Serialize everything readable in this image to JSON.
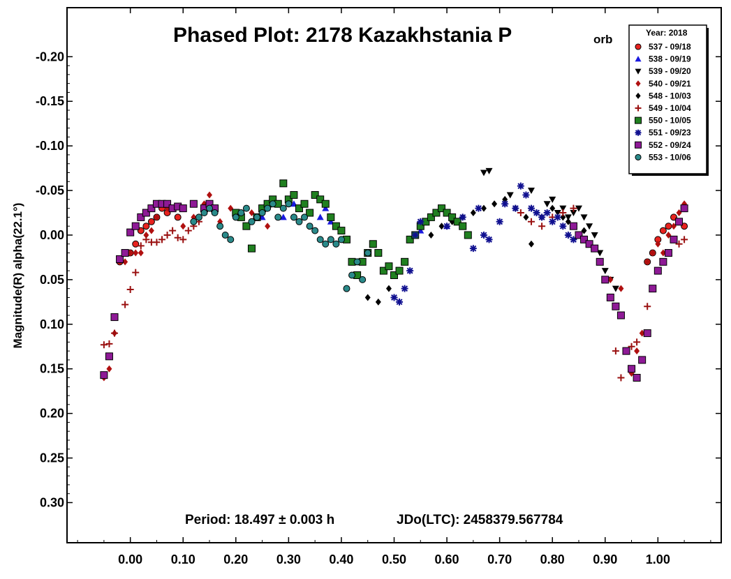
{
  "chart_data": {
    "type": "scatter",
    "title": "Phased Plot: 2178 Kazakhstania P",
    "title_subscript": "orb",
    "xlabel": "",
    "ylabel": "Magnitude(R) alpha(22.1°)",
    "xlim": [
      -0.12,
      1.12
    ],
    "ylim": [
      -0.255,
      0.345
    ],
    "y_inverted": true,
    "grid": false,
    "legend_position": "top-right",
    "legend_title": "Year: 2018",
    "x_ticks": [
      0.0,
      0.1,
      0.2,
      0.3,
      0.4,
      0.5,
      0.6,
      0.7,
      0.8,
      0.9,
      1.0
    ],
    "x_tick_labels": [
      "0.00",
      "0.10",
      "0.20",
      "0.30",
      "0.40",
      "0.50",
      "0.60",
      "0.70",
      "0.80",
      "0.90",
      "1.00"
    ],
    "y_ticks": [
      -0.2,
      -0.15,
      -0.1,
      -0.05,
      0.0,
      0.05,
      0.1,
      0.15,
      0.2,
      0.25,
      0.3
    ],
    "y_tick_labels": [
      "-0.20",
      "-0.15",
      "-0.10",
      "-0.05",
      "0.00",
      "0.05",
      "0.10",
      "0.15",
      "0.20",
      "0.25",
      "0.30"
    ],
    "annotations": {
      "period": "Period: 18.497 ± 0.003 h",
      "epoch": "JDo(LTC): 2458379.567784"
    },
    "series": [
      {
        "name": "537 - 09/18",
        "marker": "circle",
        "color": "#e8231f",
        "points": [
          [
            -0.02,
            0.03
          ],
          [
            0.0,
            0.02
          ],
          [
            0.01,
            0.01
          ],
          [
            0.02,
            -0.005
          ],
          [
            0.03,
            -0.01
          ],
          [
            0.04,
            -0.015
          ],
          [
            0.05,
            -0.02
          ],
          [
            0.06,
            -0.03
          ],
          [
            0.07,
            -0.025
          ],
          [
            0.08,
            -0.03
          ],
          [
            0.09,
            -0.02
          ],
          [
            0.98,
            0.03
          ],
          [
            0.99,
            0.02
          ],
          [
            1.0,
            0.005
          ],
          [
            1.01,
            -0.005
          ],
          [
            1.02,
            -0.01
          ],
          [
            1.03,
            -0.02
          ],
          [
            1.04,
            -0.015
          ],
          [
            1.05,
            -0.01
          ]
        ]
      },
      {
        "name": "538 - 09/19",
        "marker": "triangle-up",
        "color": "#1a1adf",
        "points": [
          [
            0.25,
            -0.02
          ],
          [
            0.29,
            -0.02
          ],
          [
            0.31,
            -0.035
          ],
          [
            0.36,
            -0.02
          ],
          [
            0.37,
            -0.03
          ],
          [
            0.38,
            -0.015
          ],
          [
            0.55,
            -0.005
          ],
          [
            0.6,
            -0.01
          ]
        ]
      },
      {
        "name": "539 - 09/20",
        "marker": "triangle-down",
        "color": "#000000",
        "points": [
          [
            0.67,
            -0.07
          ],
          [
            0.68,
            -0.072
          ],
          [
            0.72,
            -0.045
          ],
          [
            0.76,
            -0.05
          ],
          [
            0.79,
            -0.035
          ],
          [
            0.8,
            -0.04
          ],
          [
            0.81,
            -0.025
          ],
          [
            0.82,
            -0.03
          ],
          [
            0.83,
            -0.02
          ],
          [
            0.84,
            -0.025
          ],
          [
            0.85,
            -0.03
          ],
          [
            0.86,
            -0.02
          ],
          [
            0.87,
            -0.01
          ],
          [
            0.88,
            0.0
          ],
          [
            0.89,
            0.02
          ],
          [
            0.9,
            0.04
          ],
          [
            0.91,
            0.05
          ],
          [
            0.92,
            0.06
          ],
          [
            0.93,
            0.09
          ]
        ]
      },
      {
        "name": "540 - 09/21",
        "marker": "diamond",
        "color": "#b01010",
        "points": [
          [
            -0.05,
            0.16
          ],
          [
            -0.04,
            0.15
          ],
          [
            -0.03,
            0.11
          ],
          [
            -0.02,
            0.03
          ],
          [
            -0.01,
            0.03
          ],
          [
            0.0,
            0.02
          ],
          [
            0.01,
            0.02
          ],
          [
            0.02,
            0.02
          ],
          [
            0.03,
            0.0
          ],
          [
            0.04,
            -0.005
          ],
          [
            0.05,
            -0.02
          ],
          [
            0.07,
            -0.03
          ],
          [
            0.1,
            -0.01
          ],
          [
            0.12,
            -0.02
          ],
          [
            0.14,
            -0.035
          ],
          [
            0.15,
            -0.045
          ],
          [
            0.17,
            -0.015
          ],
          [
            0.19,
            -0.03
          ],
          [
            0.21,
            -0.02
          ],
          [
            0.23,
            -0.025
          ],
          [
            0.25,
            -0.03
          ],
          [
            0.26,
            -0.01
          ],
          [
            0.28,
            -0.02
          ],
          [
            0.91,
            0.05
          ],
          [
            0.93,
            0.06
          ],
          [
            0.95,
            0.155
          ],
          [
            0.96,
            0.13
          ],
          [
            0.97,
            0.11
          ],
          [
            0.98,
            0.03
          ],
          [
            0.99,
            0.02
          ],
          [
            1.0,
            0.01
          ],
          [
            1.01,
            0.02
          ],
          [
            1.02,
            0.0
          ],
          [
            1.03,
            -0.01
          ],
          [
            1.04,
            -0.025
          ],
          [
            1.05,
            -0.035
          ]
        ]
      },
      {
        "name": "548 - 10/03",
        "marker": "diamond",
        "color": "#000000",
        "points": [
          [
            0.43,
            0.03
          ],
          [
            0.45,
            0.07
          ],
          [
            0.47,
            0.075
          ],
          [
            0.49,
            0.06
          ],
          [
            0.57,
            0.0
          ],
          [
            0.59,
            -0.01
          ],
          [
            0.61,
            -0.015
          ],
          [
            0.63,
            -0.02
          ],
          [
            0.65,
            -0.025
          ],
          [
            0.67,
            -0.03
          ],
          [
            0.69,
            -0.035
          ],
          [
            0.71,
            -0.04
          ],
          [
            0.73,
            -0.03
          ],
          [
            0.75,
            -0.02
          ],
          [
            0.76,
            0.01
          ],
          [
            0.78,
            -0.02
          ],
          [
            0.8,
            -0.03
          ],
          [
            0.82,
            -0.02
          ],
          [
            0.83,
            -0.015
          ],
          [
            0.84,
            -0.01
          ],
          [
            0.86,
            -0.005
          ]
        ]
      },
      {
        "name": "549 - 10/04",
        "marker": "plus",
        "color": "#9a1010",
        "points": [
          [
            -0.05,
            0.123
          ],
          [
            -0.04,
            0.122
          ],
          [
            -0.03,
            0.11
          ],
          [
            -0.01,
            0.078
          ],
          [
            0.0,
            0.061
          ],
          [
            0.01,
            0.042
          ],
          [
            0.02,
            0.012
          ],
          [
            0.03,
            0.005
          ],
          [
            0.04,
            0.008
          ],
          [
            0.05,
            0.008
          ],
          [
            0.06,
            0.005
          ],
          [
            0.07,
            0.0
          ],
          [
            0.08,
            -0.005
          ],
          [
            0.09,
            0.003
          ],
          [
            0.1,
            0.005
          ],
          [
            0.11,
            -0.005
          ],
          [
            0.12,
            -0.01
          ],
          [
            0.13,
            -0.015
          ],
          [
            0.74,
            -0.025
          ],
          [
            0.76,
            -0.015
          ],
          [
            0.78,
            -0.01
          ],
          [
            0.8,
            -0.02
          ],
          [
            0.82,
            -0.025
          ],
          [
            0.84,
            -0.03
          ],
          [
            0.92,
            0.13
          ],
          [
            0.93,
            0.16
          ],
          [
            0.95,
            0.125
          ],
          [
            0.96,
            0.12
          ],
          [
            0.98,
            0.08
          ],
          [
            0.99,
            0.06
          ],
          [
            1.0,
            0.04
          ],
          [
            1.02,
            0.02
          ],
          [
            1.04,
            0.01
          ],
          [
            1.05,
            0.005
          ]
        ]
      },
      {
        "name": "550 - 10/05",
        "marker": "square",
        "color": "#208020",
        "points": [
          [
            0.2,
            -0.025
          ],
          [
            0.21,
            -0.02
          ],
          [
            0.22,
            -0.01
          ],
          [
            0.23,
            0.015
          ],
          [
            0.24,
            -0.02
          ],
          [
            0.25,
            -0.03
          ],
          [
            0.26,
            -0.035
          ],
          [
            0.27,
            -0.04
          ],
          [
            0.28,
            -0.035
          ],
          [
            0.29,
            -0.058
          ],
          [
            0.3,
            -0.04
          ],
          [
            0.31,
            -0.045
          ],
          [
            0.32,
            -0.03
          ],
          [
            0.33,
            -0.035
          ],
          [
            0.34,
            -0.025
          ],
          [
            0.35,
            -0.045
          ],
          [
            0.36,
            -0.04
          ],
          [
            0.37,
            -0.035
          ],
          [
            0.38,
            -0.02
          ],
          [
            0.39,
            -0.01
          ],
          [
            0.4,
            -0.005
          ],
          [
            0.41,
            0.005
          ],
          [
            0.42,
            0.03
          ],
          [
            0.43,
            0.045
          ],
          [
            0.44,
            0.03
          ],
          [
            0.45,
            0.02
          ],
          [
            0.46,
            0.01
          ],
          [
            0.47,
            0.02
          ],
          [
            0.48,
            0.04
          ],
          [
            0.49,
            0.035
          ],
          [
            0.5,
            0.045
          ],
          [
            0.51,
            0.04
          ],
          [
            0.52,
            0.03
          ],
          [
            0.53,
            0.005
          ],
          [
            0.54,
            0.0
          ],
          [
            0.55,
            -0.01
          ],
          [
            0.56,
            -0.015
          ],
          [
            0.57,
            -0.02
          ],
          [
            0.58,
            -0.025
          ],
          [
            0.59,
            -0.03
          ],
          [
            0.6,
            -0.025
          ],
          [
            0.61,
            -0.02
          ],
          [
            0.62,
            -0.015
          ],
          [
            0.63,
            -0.01
          ],
          [
            0.64,
            0.0
          ]
        ]
      },
      {
        "name": "551 - 09/23",
        "marker": "star",
        "color": "#101090",
        "points": [
          [
            0.5,
            0.07
          ],
          [
            0.51,
            0.075
          ],
          [
            0.52,
            0.06
          ],
          [
            0.53,
            0.04
          ],
          [
            0.54,
            0.0
          ],
          [
            0.55,
            -0.015
          ],
          [
            0.6,
            -0.01
          ],
          [
            0.63,
            -0.02
          ],
          [
            0.65,
            0.015
          ],
          [
            0.66,
            -0.03
          ],
          [
            0.67,
            0.0
          ],
          [
            0.68,
            0.005
          ],
          [
            0.7,
            -0.015
          ],
          [
            0.71,
            -0.035
          ],
          [
            0.73,
            -0.03
          ],
          [
            0.74,
            -0.055
          ],
          [
            0.75,
            -0.045
          ],
          [
            0.76,
            -0.03
          ],
          [
            0.77,
            -0.025
          ],
          [
            0.78,
            -0.02
          ],
          [
            0.79,
            -0.025
          ],
          [
            0.8,
            -0.015
          ],
          [
            0.81,
            -0.02
          ],
          [
            0.82,
            -0.01
          ],
          [
            0.83,
            0.0
          ],
          [
            0.84,
            0.005
          ],
          [
            0.85,
            0.0
          ]
        ]
      },
      {
        "name": "552 - 09/24",
        "marker": "square",
        "color": "#8e1a96",
        "points": [
          [
            -0.05,
            0.157
          ],
          [
            -0.04,
            0.136
          ],
          [
            -0.03,
            0.092
          ],
          [
            -0.02,
            0.027
          ],
          [
            -0.01,
            0.02
          ],
          [
            0.0,
            -0.003
          ],
          [
            0.01,
            -0.01
          ],
          [
            0.02,
            -0.02
          ],
          [
            0.03,
            -0.025
          ],
          [
            0.04,
            -0.03
          ],
          [
            0.05,
            -0.035
          ],
          [
            0.06,
            -0.035
          ],
          [
            0.07,
            -0.035
          ],
          [
            0.08,
            -0.03
          ],
          [
            0.09,
            -0.032
          ],
          [
            0.1,
            -0.03
          ],
          [
            0.12,
            -0.035
          ],
          [
            0.14,
            -0.03
          ],
          [
            0.15,
            -0.035
          ],
          [
            0.16,
            -0.03
          ],
          [
            0.84,
            -0.01
          ],
          [
            0.85,
            0.0
          ],
          [
            0.86,
            0.005
          ],
          [
            0.87,
            0.01
          ],
          [
            0.88,
            0.015
          ],
          [
            0.89,
            0.03
          ],
          [
            0.9,
            0.05
          ],
          [
            0.91,
            0.07
          ],
          [
            0.92,
            0.08
          ],
          [
            0.93,
            0.09
          ],
          [
            0.94,
            0.13
          ],
          [
            0.95,
            0.15
          ],
          [
            0.96,
            0.16
          ],
          [
            0.97,
            0.14
          ],
          [
            0.98,
            0.11
          ],
          [
            0.99,
            0.06
          ],
          [
            1.0,
            0.04
          ],
          [
            1.01,
            0.03
          ],
          [
            1.02,
            0.02
          ],
          [
            1.03,
            0.005
          ],
          [
            1.04,
            -0.015
          ],
          [
            1.05,
            -0.03
          ]
        ]
      },
      {
        "name": "553 - 10/06",
        "marker": "circle",
        "color": "#2a8a8a",
        "points": [
          [
            0.12,
            -0.015
          ],
          [
            0.13,
            -0.02
          ],
          [
            0.14,
            -0.025
          ],
          [
            0.15,
            -0.03
          ],
          [
            0.16,
            -0.025
          ],
          [
            0.17,
            -0.01
          ],
          [
            0.18,
            0.0
          ],
          [
            0.19,
            0.005
          ],
          [
            0.2,
            -0.02
          ],
          [
            0.21,
            -0.025
          ],
          [
            0.22,
            -0.03
          ],
          [
            0.23,
            -0.015
          ],
          [
            0.24,
            -0.02
          ],
          [
            0.25,
            -0.025
          ],
          [
            0.26,
            -0.03
          ],
          [
            0.27,
            -0.035
          ],
          [
            0.28,
            -0.02
          ],
          [
            0.29,
            -0.03
          ],
          [
            0.3,
            -0.035
          ],
          [
            0.31,
            -0.02
          ],
          [
            0.32,
            -0.015
          ],
          [
            0.33,
            -0.02
          ],
          [
            0.34,
            -0.01
          ],
          [
            0.35,
            -0.005
          ],
          [
            0.36,
            0.005
          ],
          [
            0.37,
            0.01
          ],
          [
            0.38,
            0.005
          ],
          [
            0.39,
            0.01
          ],
          [
            0.4,
            0.005
          ],
          [
            0.41,
            0.06
          ],
          [
            0.42,
            0.045
          ],
          [
            0.43,
            0.03
          ],
          [
            0.44,
            0.05
          ],
          [
            0.45,
            0.02
          ]
        ]
      }
    ]
  }
}
